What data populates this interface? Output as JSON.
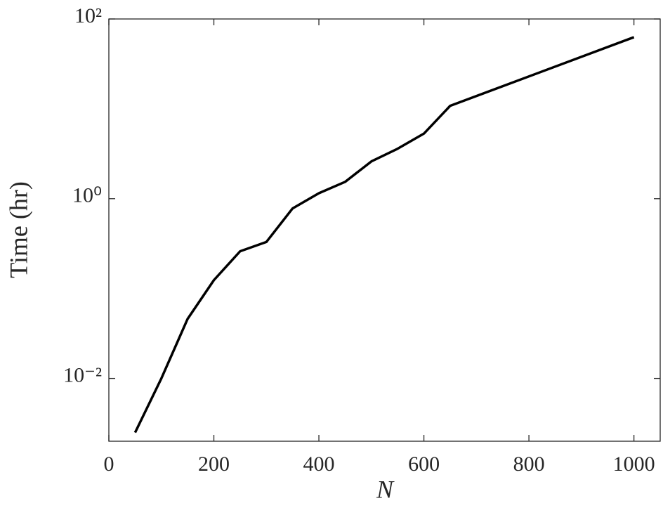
{
  "chart_data": {
    "type": "line",
    "log_y": true,
    "x_label": "N",
    "y_label": "Time (hr)",
    "x": [
      50,
      100,
      150,
      200,
      250,
      300,
      350,
      400,
      450,
      500,
      550,
      600,
      650,
      1000
    ],
    "series": [
      {
        "color": "#000000",
        "values": [
          0.0025,
          0.01,
          0.046,
          0.124,
          0.26,
          0.33,
          0.78,
          1.15,
          1.54,
          2.6,
          3.6,
          5.3,
          10.8,
          62.7
        ]
      }
    ],
    "xlim": [
      0,
      1050
    ],
    "xticks": [
      0,
      200,
      400,
      600,
      800,
      1000
    ],
    "ylim": [
      0.002,
      100
    ],
    "yticks": [
      {
        "value": 0.01,
        "label": "10⁻²"
      },
      {
        "value": 1,
        "label": "10⁰"
      },
      {
        "value": 100,
        "label": "10²"
      }
    ]
  }
}
